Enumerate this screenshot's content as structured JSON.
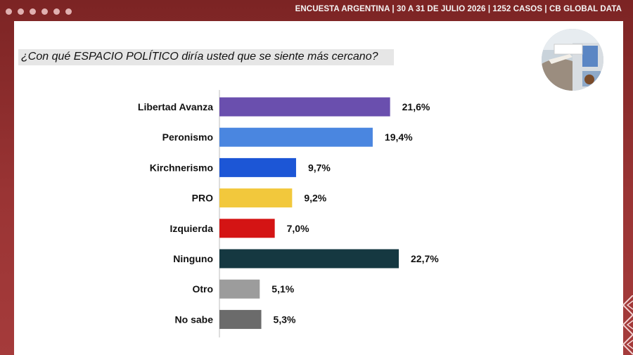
{
  "header": {
    "text": "ENCUESTA ARGENTINA | 30 A 31 DE JULIO 2026 | 1252 CASOS | CB GLOBAL DATA"
  },
  "question": "¿Con qué ESPACIO POLÍTICO diría usted que se siente más cercano?",
  "photo": {
    "icon": "ballot-box-photo-icon"
  },
  "chart_data": {
    "type": "bar",
    "orientation": "horizontal",
    "title": "¿Con qué ESPACIO POLÍTICO diría usted que se siente más cercano?",
    "categories": [
      "Libertad Avanza",
      "Peronismo",
      "Kirchnerismo",
      "PRO",
      "Izquierda",
      "Ninguno",
      "Otro",
      "No sabe"
    ],
    "values": [
      21.6,
      19.4,
      9.7,
      9.2,
      7.0,
      22.7,
      5.1,
      5.3
    ],
    "labels": [
      "21,6%",
      "19,4%",
      "9,7%",
      "9,2%",
      "7,0%",
      "22,7%",
      "5,1%",
      "5,3%"
    ],
    "colors": [
      "#6a4fae",
      "#4a86e0",
      "#1c56d6",
      "#f2c83c",
      "#d41414",
      "#153841",
      "#9c9c9c",
      "#6b6b6b"
    ],
    "xlim": [
      0,
      22.7
    ],
    "grid": false,
    "legend": "none"
  }
}
